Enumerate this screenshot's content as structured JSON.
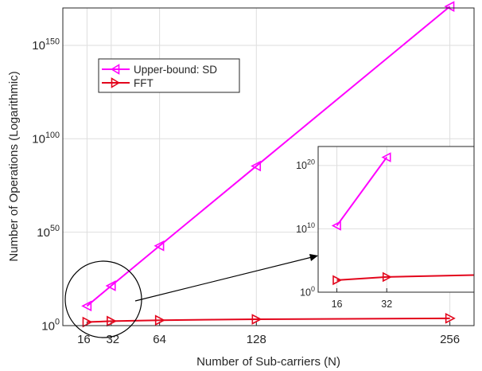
{
  "chart_data": [
    {
      "type": "line",
      "title": "",
      "xlabel": "Number of Sub-carriers (N)",
      "ylabel": "Number of Operations (Logarithmic)",
      "x_scale": "linear",
      "y_scale": "log",
      "xlim": [
        0,
        272
      ],
      "ylim_log10": [
        0,
        170
      ],
      "x_ticks": [
        16,
        32,
        64,
        128,
        256
      ],
      "x_tick_labels": [
        "16",
        "32",
        "64",
        "128",
        "256"
      ],
      "y_ticks_log10": [
        0,
        50,
        100,
        150
      ],
      "y_tick_labels": [
        {
          "base": "10",
          "exp": "0"
        },
        {
          "base": "10",
          "exp": "50"
        },
        {
          "base": "10",
          "exp": "100"
        },
        {
          "base": "10",
          "exp": "150"
        }
      ],
      "grid": true,
      "legend_position": "top-left",
      "series": [
        {
          "name": "Upper-bound: SD",
          "color": "#ff00ff",
          "marker": "triangle-left",
          "x": [
            16,
            32,
            64,
            128,
            256
          ],
          "y_log10": [
            10.5,
            21.3,
            42.7,
            85.4,
            170.8
          ]
        },
        {
          "name": "FFT",
          "color": "#e3061c",
          "marker": "triangle-right",
          "x": [
            16,
            32,
            64,
            128,
            256
          ],
          "y_log10": [
            1.9,
            2.4,
            2.9,
            3.4,
            3.9
          ]
        }
      ],
      "annotations": [
        {
          "type": "circle",
          "around": "N=16..32 region",
          "color": "#000000"
        },
        {
          "type": "arrow",
          "from": "circle",
          "to": "inset",
          "color": "#000000"
        }
      ]
    },
    {
      "type": "line",
      "role": "inset",
      "x_scale": "linear",
      "y_scale": "log",
      "xlim": [
        10,
        60
      ],
      "ylim_log10": [
        0,
        23
      ],
      "x_ticks": [
        16,
        32
      ],
      "x_tick_labels": [
        "16",
        "32"
      ],
      "y_ticks_log10": [
        0,
        10,
        20
      ],
      "y_tick_labels": [
        {
          "base": "10",
          "exp": "0"
        },
        {
          "base": "10",
          "exp": "10"
        },
        {
          "base": "10",
          "exp": "20"
        }
      ],
      "grid": true,
      "series": [
        {
          "name": "Upper-bound: SD",
          "color": "#ff00ff",
          "marker": "triangle-left",
          "x": [
            16,
            32
          ],
          "y_log10": [
            10.5,
            21.3
          ]
        },
        {
          "name": "FFT",
          "color": "#e3061c",
          "marker": "triangle-right",
          "x": [
            16,
            32,
            60
          ],
          "y_log10": [
            1.9,
            2.4,
            2.7
          ]
        }
      ]
    }
  ]
}
